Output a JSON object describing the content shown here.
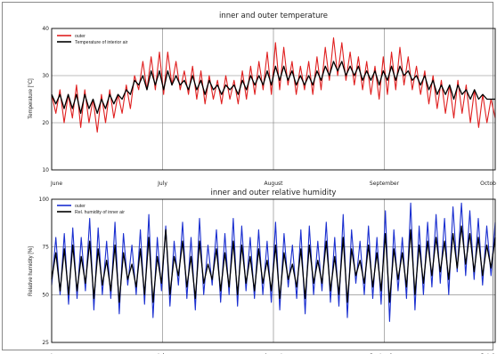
{
  "chart_data": [
    {
      "type": "line",
      "title": "inner and outer temperature",
      "xlabel": "",
      "ylabel": "Temperature [°C]",
      "ylim": [
        10,
        40
      ],
      "yticks": [
        10,
        20,
        30,
        40
      ],
      "x_tick_labels": [
        "June",
        "July",
        "August",
        "September",
        "Octob"
      ],
      "grid": true,
      "legend_position": "top-left",
      "series": [
        {
          "name": "outer",
          "color": "#e02020",
          "values": [
            26,
            22,
            27,
            20,
            26,
            21,
            28,
            19,
            27,
            20,
            25,
            18,
            26,
            20,
            27,
            21,
            26,
            22,
            28,
            23,
            30,
            27,
            33,
            27,
            34,
            27,
            35,
            26,
            35,
            28,
            33,
            27,
            31,
            26,
            32,
            25,
            31,
            24,
            30,
            25,
            29,
            24,
            30,
            25,
            29,
            24,
            31,
            25,
            32,
            26,
            33,
            27,
            35,
            26,
            37,
            27,
            36,
            28,
            33,
            26,
            32,
            27,
            33,
            26,
            34,
            27,
            36,
            29,
            38,
            30,
            37,
            29,
            35,
            28,
            34,
            27,
            33,
            26,
            32,
            25,
            34,
            26,
            35,
            27,
            36,
            28,
            34,
            27,
            32,
            26,
            31,
            24,
            30,
            23,
            29,
            22,
            28,
            21,
            29,
            22,
            28,
            20,
            27,
            19,
            26,
            20,
            25,
            21
          ]
        },
        {
          "name": "Temperature of interior air",
          "color": "#000000",
          "values": [
            26,
            24,
            26,
            23,
            26,
            23,
            26,
            22,
            26,
            23,
            25,
            22,
            25,
            23,
            26,
            24,
            26,
            25,
            27,
            26,
            29,
            28,
            30,
            27,
            31,
            28,
            31,
            27,
            31,
            28,
            30,
            28,
            29,
            27,
            30,
            27,
            29,
            26,
            29,
            27,
            28,
            26,
            28,
            27,
            28,
            26,
            29,
            27,
            30,
            28,
            30,
            28,
            31,
            28,
            32,
            29,
            32,
            29,
            31,
            28,
            30,
            28,
            30,
            28,
            31,
            29,
            32,
            30,
            33,
            31,
            33,
            30,
            32,
            30,
            32,
            29,
            31,
            29,
            31,
            28,
            31,
            29,
            32,
            29,
            32,
            30,
            31,
            29,
            30,
            28,
            30,
            27,
            29,
            26,
            28,
            26,
            28,
            25,
            28,
            26,
            27,
            25,
            27,
            25,
            26,
            25,
            25,
            25
          ]
        }
      ]
    },
    {
      "type": "line",
      "title": "inner and outer relative humidity",
      "xlabel": "",
      "ylabel": "Relative humidity [%]",
      "ylim": [
        25,
        100
      ],
      "yticks": [
        25,
        50,
        75,
        100
      ],
      "x_tick_labels": [
        "June",
        "July",
        "August",
        "September",
        "Octob"
      ],
      "grid": true,
      "legend_position": "top-left",
      "series": [
        {
          "name": "outer",
          "color": "#1a2fd0",
          "values": [
            55,
            80,
            50,
            82,
            45,
            85,
            48,
            80,
            52,
            90,
            42,
            85,
            50,
            78,
            48,
            88,
            40,
            82,
            55,
            76,
            50,
            84,
            45,
            92,
            38,
            80,
            52,
            86,
            44,
            78,
            55,
            88,
            48,
            80,
            42,
            90,
            50,
            76,
            55,
            84,
            46,
            82,
            50,
            90,
            44,
            86,
            52,
            80,
            48,
            84,
            50,
            78,
            46,
            88,
            42,
            82,
            54,
            76,
            48,
            84,
            40,
            86,
            50,
            78,
            52,
            88,
            46,
            80,
            44,
            92,
            38,
            84,
            56,
            78,
            50,
            86,
            48,
            80,
            45,
            94,
            36,
            84,
            52,
            80,
            48,
            98,
            42,
            86,
            50,
            88,
            54,
            92,
            56,
            90,
            50,
            96,
            62,
            98,
            60,
            94,
            58,
            90,
            55,
            86,
            60,
            88
          ]
        },
        {
          "name": "Rel. humidity of inner air",
          "color": "#000000",
          "values": [
            58,
            72,
            52,
            74,
            50,
            76,
            52,
            70,
            56,
            78,
            48,
            74,
            55,
            68,
            52,
            76,
            46,
            72,
            58,
            66,
            54,
            74,
            50,
            80,
            46,
            70,
            56,
            84,
            50,
            70,
            60,
            78,
            54,
            70,
            48,
            78,
            56,
            66,
            58,
            74,
            52,
            72,
            54,
            78,
            50,
            76,
            56,
            70,
            52,
            74,
            56,
            68,
            52,
            76,
            48,
            72,
            58,
            66,
            54,
            74,
            48,
            76,
            56,
            68,
            56,
            78,
            52,
            70,
            50,
            80,
            46,
            74,
            60,
            68,
            56,
            76,
            54,
            72,
            52,
            82,
            46,
            74,
            58,
            72,
            54,
            84,
            50,
            76,
            56,
            78,
            60,
            80,
            62,
            78,
            58,
            82,
            64,
            86,
            66,
            82,
            62,
            80,
            60,
            76,
            64,
            80
          ]
        }
      ]
    }
  ]
}
